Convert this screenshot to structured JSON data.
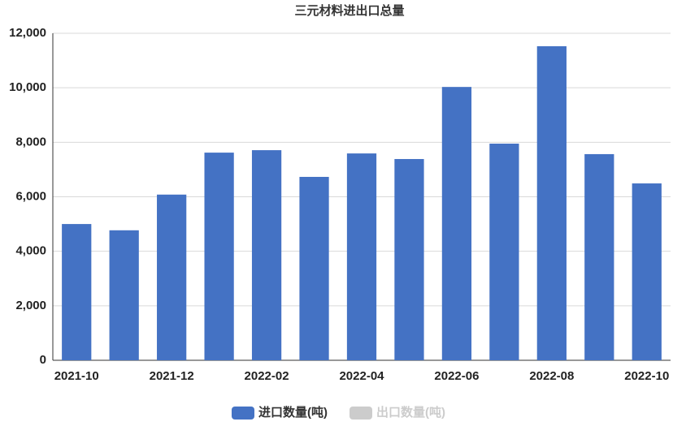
{
  "chart_data": {
    "type": "bar",
    "title": "三元材料进出口总量",
    "categories": [
      "2021-10",
      null,
      "2021-12",
      null,
      "2022-02",
      null,
      "2022-04",
      null,
      "2022-06",
      null,
      "2022-08",
      null,
      "2022-10"
    ],
    "series": [
      {
        "name": "进口数量(吨)",
        "color": "#4472c4",
        "values": [
          5000,
          4770,
          6080,
          7620,
          7710,
          6730,
          7590,
          7385,
          10030,
          7950,
          11525,
          7565,
          6490
        ]
      },
      {
        "name": "出口数量(吨)",
        "color": "#cccccc",
        "values": [
          null,
          null,
          null,
          null,
          null,
          null,
          null,
          null,
          null,
          null,
          null,
          null,
          null
        ]
      }
    ],
    "ylim": [
      0,
      12000
    ],
    "yticks": [
      0,
      {
        "value": 2000,
        "label": "2,000"
      },
      {
        "value": 4000,
        "label": "4,000"
      },
      {
        "value": 6000,
        "label": "6,000"
      },
      {
        "value": 8000,
        "label": "8,000"
      },
      {
        "value": 10000,
        "label": "10,000"
      },
      {
        "value": 12000,
        "label": "12,000"
      }
    ],
    "grid": true,
    "legend": "bottom"
  }
}
